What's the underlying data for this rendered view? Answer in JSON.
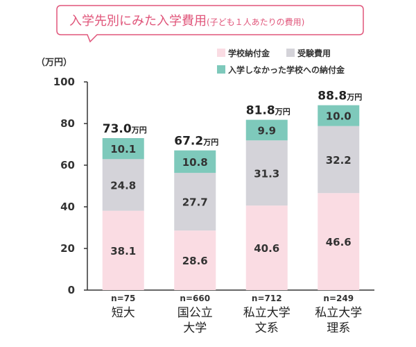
{
  "colors": {
    "tuition": "#fadce3",
    "exam": "#d4d3d9",
    "unused": "#7ec9bb",
    "title": "#e0557a",
    "axis": "#333333"
  },
  "chart_data": {
    "type": "bar",
    "stacked": true,
    "title": "入学先別にみた入学費用",
    "subtitle": "(子ども１人あたりの費用)",
    "ylabel": "（万円）",
    "ylim": [
      0,
      100
    ],
    "yticks": [
      0,
      20,
      40,
      60,
      80,
      100
    ],
    "grid": false,
    "legend_position": "top-right",
    "categories": [
      [
        "短大"
      ],
      [
        "国公立",
        "大学"
      ],
      [
        "私立大学",
        "文系"
      ],
      [
        "私立大学",
        "理系"
      ]
    ],
    "sample_sizes": [
      "n=75",
      "n=660",
      "n=712",
      "n=249"
    ],
    "series": [
      {
        "name": "学校納付金",
        "values": [
          38.1,
          28.6,
          40.6,
          46.6
        ]
      },
      {
        "name": "受験費用",
        "values": [
          24.8,
          27.7,
          31.3,
          32.2
        ]
      },
      {
        "name": "入学しなかった学校への納付金",
        "values": [
          10.1,
          10.8,
          9.9,
          10.0
        ]
      }
    ],
    "totals": [
      "73.0",
      "67.2",
      "81.8",
      "88.8"
    ],
    "total_unit": "万円"
  }
}
